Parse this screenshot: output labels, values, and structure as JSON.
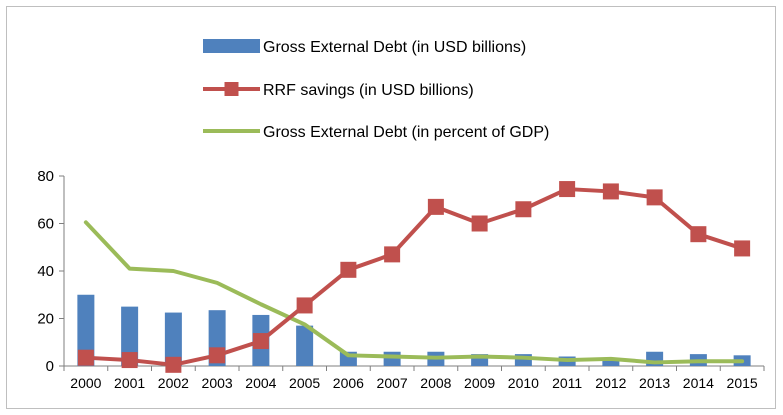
{
  "chart_data": {
    "type": "bar+line",
    "title": "",
    "xlabel": "",
    "ylabel": "",
    "ylim": [
      0,
      80
    ],
    "yticks": [
      0,
      20,
      40,
      60,
      80
    ],
    "grid": false,
    "legend_position": "top",
    "categories": [
      "2000",
      "2001",
      "2002",
      "2003",
      "2004",
      "2005",
      "2006",
      "2007",
      "2008",
      "2009",
      "2010",
      "2011",
      "2012",
      "2013",
      "2014",
      "2015"
    ],
    "series": [
      {
        "name": "Gross External Debt  (in USD billions)",
        "kind": "bar",
        "color": "#4f81bd",
        "values": [
          30,
          25,
          22.5,
          23.5,
          21.5,
          17,
          6,
          6,
          6,
          5,
          5,
          4,
          2.5,
          6,
          5,
          4.5
        ]
      },
      {
        "name": "RRF savings  (in USD billions)",
        "kind": "line-marker",
        "color": "#c0504d",
        "values": [
          3.5,
          2.5,
          0.5,
          4.5,
          10.5,
          25.5,
          40.5,
          47,
          67,
          60,
          66,
          74.5,
          73.5,
          71,
          55.5,
          49.5
        ]
      },
      {
        "name": "Gross External Debt (in percent of GDP)",
        "kind": "line",
        "color": "#9bbb59",
        "values": [
          60.5,
          41,
          40,
          35,
          26,
          17.5,
          4.5,
          4,
          3.5,
          4,
          3.5,
          2.5,
          3,
          1.5,
          2,
          2
        ]
      }
    ]
  }
}
